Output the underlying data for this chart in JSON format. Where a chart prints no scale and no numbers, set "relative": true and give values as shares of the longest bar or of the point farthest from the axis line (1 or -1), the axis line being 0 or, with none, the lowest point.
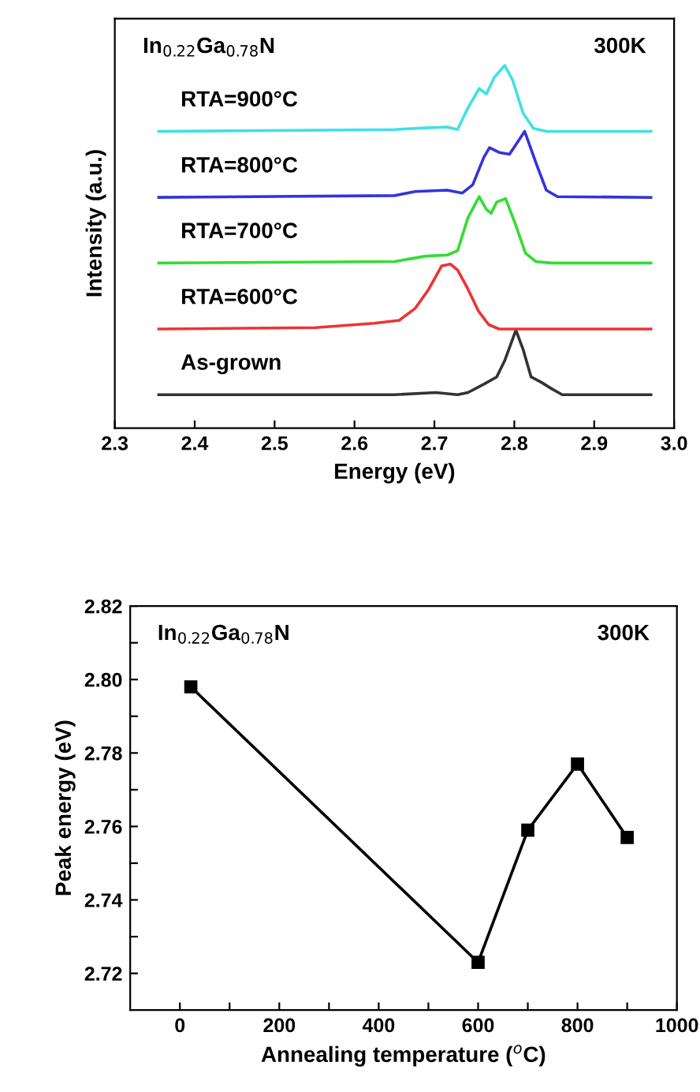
{
  "chart_data": [
    {
      "type": "line",
      "relative": true,
      "xlabel": "Energy (eV)",
      "ylabel": "Intensity (a.u.)",
      "xlim": [
        2.3,
        3.0
      ],
      "xticks": [
        2.3,
        2.4,
        2.5,
        2.6,
        2.7,
        2.8,
        2.9,
        {
          "value": 3.0,
          "label": "3.0"
        }
      ],
      "tick_labels": "x",
      "line_style": "solid",
      "annotations": [
        "In$_{0.22}$Ga$_{0.78}$N",
        "300K"
      ],
      "series": [
        {
          "name": "As-grown",
          "color": "#333333",
          "x": [
            2.355,
            2.65,
            2.702,
            2.729,
            2.742,
            2.762,
            2.778,
            2.788,
            2.802,
            2.811,
            2.821,
            2.834,
            2.847,
            2.86,
            2.971
          ],
          "values": [
            0.092,
            0.092,
            0.098,
            0.092,
            0.098,
            0.121,
            0.141,
            0.186,
            0.27,
            0.217,
            0.141,
            0.126,
            0.108,
            0.092,
            0.092
          ]
        },
        {
          "name": "RTA=600°C",
          "color": "#ee3333",
          "x": [
            2.355,
            2.551,
            2.624,
            2.656,
            2.676,
            2.693,
            2.709,
            2.72,
            2.729,
            2.742,
            2.755,
            2.768,
            2.781,
            2.971
          ],
          "values": [
            0.273,
            0.277,
            0.289,
            0.297,
            0.33,
            0.383,
            0.447,
            0.452,
            0.436,
            0.383,
            0.323,
            0.285,
            0.273,
            0.273
          ]
        },
        {
          "name": "RTA=700°C",
          "color": "#33dd33",
          "x": [
            2.355,
            2.65,
            2.689,
            2.716,
            2.729,
            2.742,
            2.756,
            2.765,
            2.771,
            2.778,
            2.789,
            2.801,
            2.814,
            2.827,
            2.847,
            2.971
          ],
          "values": [
            0.455,
            0.459,
            0.474,
            0.477,
            0.489,
            0.58,
            0.638,
            0.603,
            0.592,
            0.623,
            0.633,
            0.565,
            0.482,
            0.459,
            0.455,
            0.455
          ]
        },
        {
          "name": "RTA=800°C",
          "color": "#3333dd",
          "x": [
            2.355,
            2.65,
            2.676,
            2.716,
            2.735,
            2.748,
            2.762,
            2.769,
            2.781,
            2.794,
            2.813,
            2.827,
            2.84,
            2.854,
            2.971
          ],
          "values": [
            0.636,
            0.641,
            0.652,
            0.656,
            0.648,
            0.671,
            0.747,
            0.773,
            0.76,
            0.755,
            0.818,
            0.732,
            0.656,
            0.638,
            0.636
          ]
        },
        {
          "name": "RTA=900°C",
          "color": "#40e0e8",
          "x": [
            2.355,
            2.65,
            2.683,
            2.716,
            2.729,
            2.742,
            2.756,
            2.765,
            2.775,
            2.788,
            2.798,
            2.811,
            2.824,
            2.84,
            2.971
          ],
          "values": [
            0.818,
            0.823,
            0.827,
            0.83,
            0.823,
            0.883,
            0.936,
            0.921,
            0.967,
            1.0,
            0.959,
            0.868,
            0.826,
            0.818,
            0.818
          ]
        }
      ]
    },
    {
      "type": "line",
      "xlabel": "Annealing temperature ($^{o}$C)",
      "ylabel": "Peak energy (eV)",
      "xlim": [
        -100,
        1000
      ],
      "ylim": [
        2.71,
        2.82
      ],
      "marker": "square",
      "line_style": "solid",
      "xticks": [
        0,
        {
          "value": 100,
          "label": null
        },
        200,
        {
          "value": 300,
          "label": null
        },
        400,
        {
          "value": 500,
          "label": null
        },
        600,
        {
          "value": 700,
          "label": null
        },
        800,
        {
          "value": 900,
          "label": null
        },
        1000
      ],
      "yticks": [
        {
          "value": 2.72,
          "label": "2.72"
        },
        {
          "value": 2.73,
          "label": null
        },
        {
          "value": 2.74,
          "label": "2.74"
        },
        {
          "value": 2.75,
          "label": null
        },
        {
          "value": 2.76,
          "label": "2.76"
        },
        {
          "value": 2.77,
          "label": null
        },
        {
          "value": 2.78,
          "label": "2.78"
        },
        {
          "value": 2.79,
          "label": null
        },
        {
          "value": 2.8,
          "label": "2.80"
        },
        {
          "value": 2.81,
          "label": null
        },
        {
          "value": 2.82,
          "label": "2.82"
        }
      ],
      "annotations": [
        "In$_{0.22}$Ga$_{0.78}$N",
        "300K"
      ],
      "series": [
        {
          "color": "#000000",
          "x": [
            22,
            600,
            700,
            800,
            900
          ],
          "values": [
            2.798,
            2.723,
            2.759,
            2.777,
            2.757
          ]
        }
      ]
    }
  ]
}
